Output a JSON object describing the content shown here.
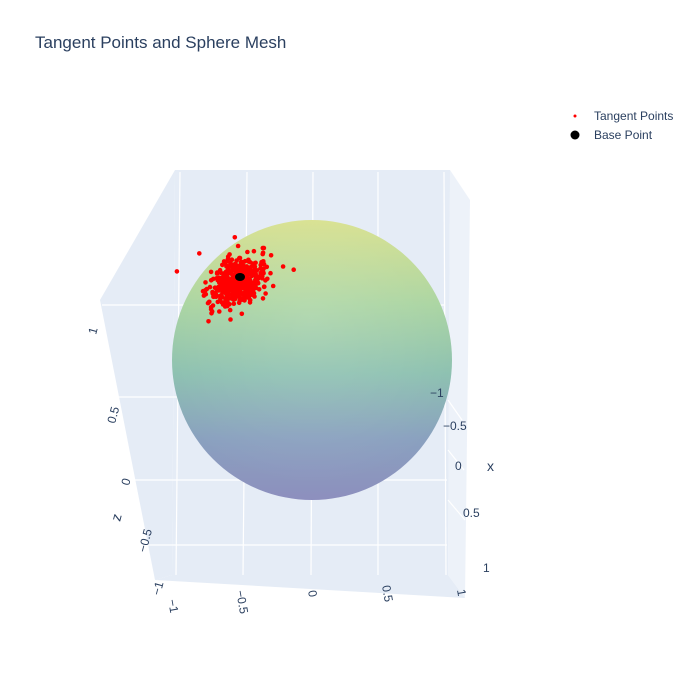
{
  "chart_data": {
    "type": "scatter3d",
    "title": "Tangent Points and Sphere Mesh",
    "legend_position": "top-right",
    "axes": {
      "x": {
        "title": "x",
        "range": [
          -1,
          1
        ],
        "ticks": [
          "−1",
          "−0.5",
          "0",
          "0.5",
          "1"
        ]
      },
      "y": {
        "title": "",
        "range": [
          -1,
          1
        ],
        "ticks": [
          "−1",
          "−0.5",
          "0",
          "0.5",
          "1"
        ]
      },
      "z": {
        "title": "z",
        "range": [
          -1,
          1
        ],
        "ticks": [
          "−1",
          "−0.5",
          "0",
          "0.5",
          "1"
        ]
      }
    },
    "surface": {
      "name": "sphere mesh",
      "radius": 1,
      "colorscale": [
        "#fde725",
        "#5ec962",
        "#21918c",
        "#3b528b",
        "#440154"
      ],
      "opacity": 0.45
    },
    "series": [
      {
        "name": "Tangent Points",
        "color": "#ff0000",
        "count": 500,
        "center": [
          -0.45,
          -0.55,
          0.68
        ],
        "spread": 0.12
      },
      {
        "name": "Base Point",
        "color": "#000000",
        "points": [
          [
            -0.45,
            -0.55,
            0.68
          ]
        ]
      }
    ],
    "grid": true
  }
}
